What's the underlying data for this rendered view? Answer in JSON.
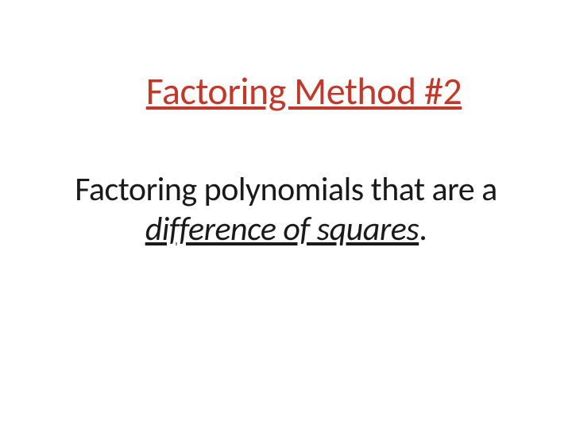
{
  "slide": {
    "title": "Factoring Method #2",
    "line1": "Factoring polynomials that are a",
    "emphasis": "difference of squares",
    "period": ".",
    "colors": {
      "title": "#c0392b",
      "body": "#1a1a1a",
      "background": "#ffffff"
    },
    "typography": {
      "title_fontsize": 48,
      "body_fontsize": 42,
      "font_family": "Calibri"
    }
  }
}
